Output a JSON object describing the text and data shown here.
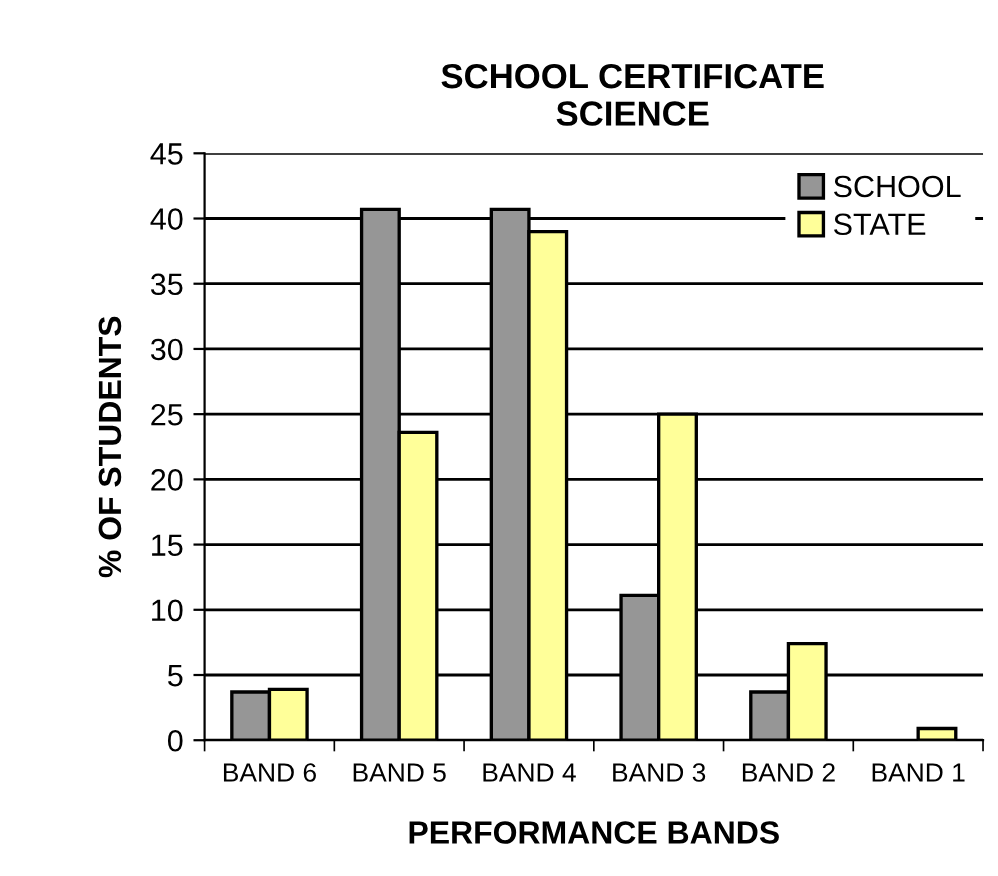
{
  "chart_data": {
    "type": "bar",
    "title": "SCHOOL CERTIFICATE\nSCIENCE",
    "xlabel": "PERFORMANCE BANDS",
    "ylabel": "% OF STUDENTS",
    "categories": [
      "BAND 6",
      "BAND 5",
      "BAND 4",
      "BAND 3",
      "BAND 2",
      "BAND 1"
    ],
    "series": [
      {
        "name": "SCHOOL",
        "color": "#969696",
        "values": [
          3.7,
          40.7,
          40.7,
          11.1,
          3.7,
          null
        ]
      },
      {
        "name": "STATE",
        "color": "#ffff99",
        "values": [
          3.9,
          23.6,
          39.0,
          25.0,
          7.4,
          0.9
        ]
      }
    ],
    "ylim": [
      0,
      45
    ],
    "yticks": [
      0,
      5,
      10,
      15,
      20,
      25,
      30,
      35,
      40,
      45
    ],
    "grid": "y",
    "legend": "top right"
  }
}
